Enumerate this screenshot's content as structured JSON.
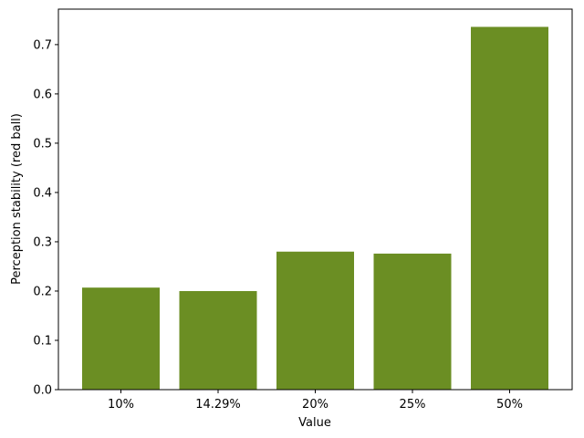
{
  "chart_data": {
    "type": "bar",
    "title": "",
    "xlabel": "Value",
    "ylabel": "Perception stability (red ball)",
    "categories": [
      "10%",
      "14.29%",
      "20%",
      "25%",
      "50%"
    ],
    "values": [
      0.207,
      0.2,
      0.28,
      0.276,
      0.736
    ],
    "ylim": [
      0,
      0.772
    ],
    "yticks": [
      0.0,
      0.1,
      0.2,
      0.3,
      0.4,
      0.5,
      0.6,
      0.7
    ],
    "ytick_labels": [
      "0.0",
      "0.1",
      "0.2",
      "0.3",
      "0.4",
      "0.5",
      "0.6",
      "0.7"
    ],
    "bar_color": "#6b8e23",
    "grid": false,
    "legend": "none"
  }
}
